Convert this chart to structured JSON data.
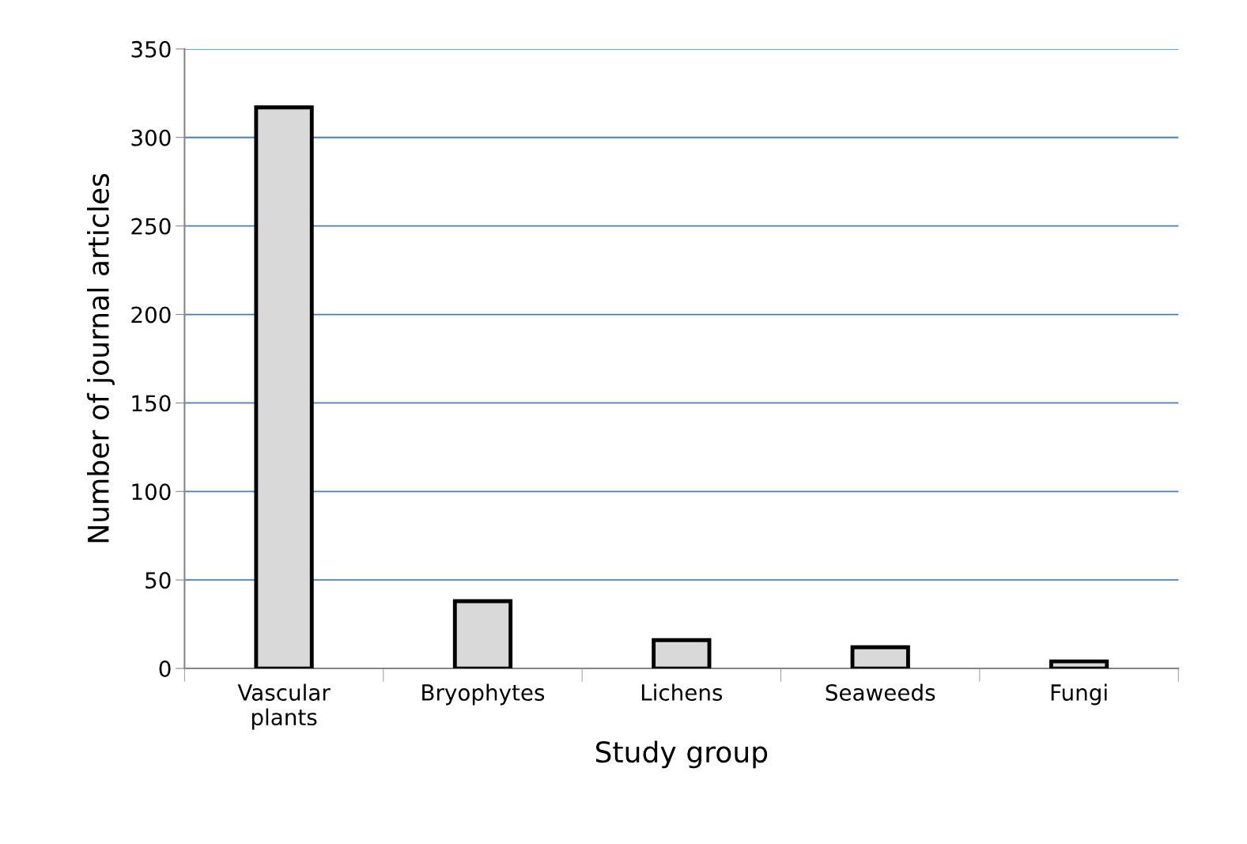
{
  "chart_data": {
    "type": "bar",
    "xlabel": "Study group",
    "ylabel": "Number of journal articles",
    "categories": [
      "Vascular\nplants",
      "Bryophytes",
      "Lichens",
      "Seaweeds",
      "Fungi"
    ],
    "values": [
      317,
      38,
      16,
      12,
      4
    ],
    "color": "#d9d9d9",
    "ylim": [
      0,
      350
    ],
    "yticks": [
      0,
      50,
      100,
      150,
      200,
      250,
      300,
      350
    ],
    "grid": "y"
  }
}
